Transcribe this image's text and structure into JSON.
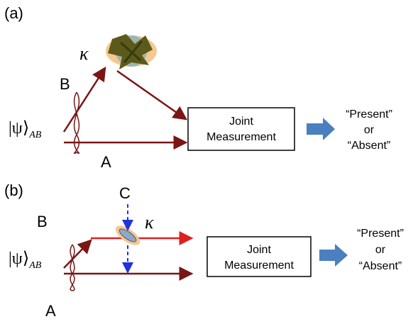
{
  "panels": [
    {
      "label": "(a)",
      "kappa": "κ",
      "arm_b": "B",
      "state": "|ψ⟩",
      "state_sub": "AB",
      "arm_a": "A",
      "box": [
        "Joint",
        "Measurement"
      ],
      "outputs": [
        "“Present”",
        "or",
        "“Absent”"
      ]
    },
    {
      "label": "(b)",
      "probe": "C",
      "kappa": "κ",
      "arm_b": "B",
      "state": "|ψ⟩",
      "state_sub": "AB",
      "arm_a": "A",
      "box": [
        "Joint",
        "Measurement"
      ],
      "outputs": [
        "“Present”",
        "or",
        "“Absent”"
      ]
    }
  ]
}
